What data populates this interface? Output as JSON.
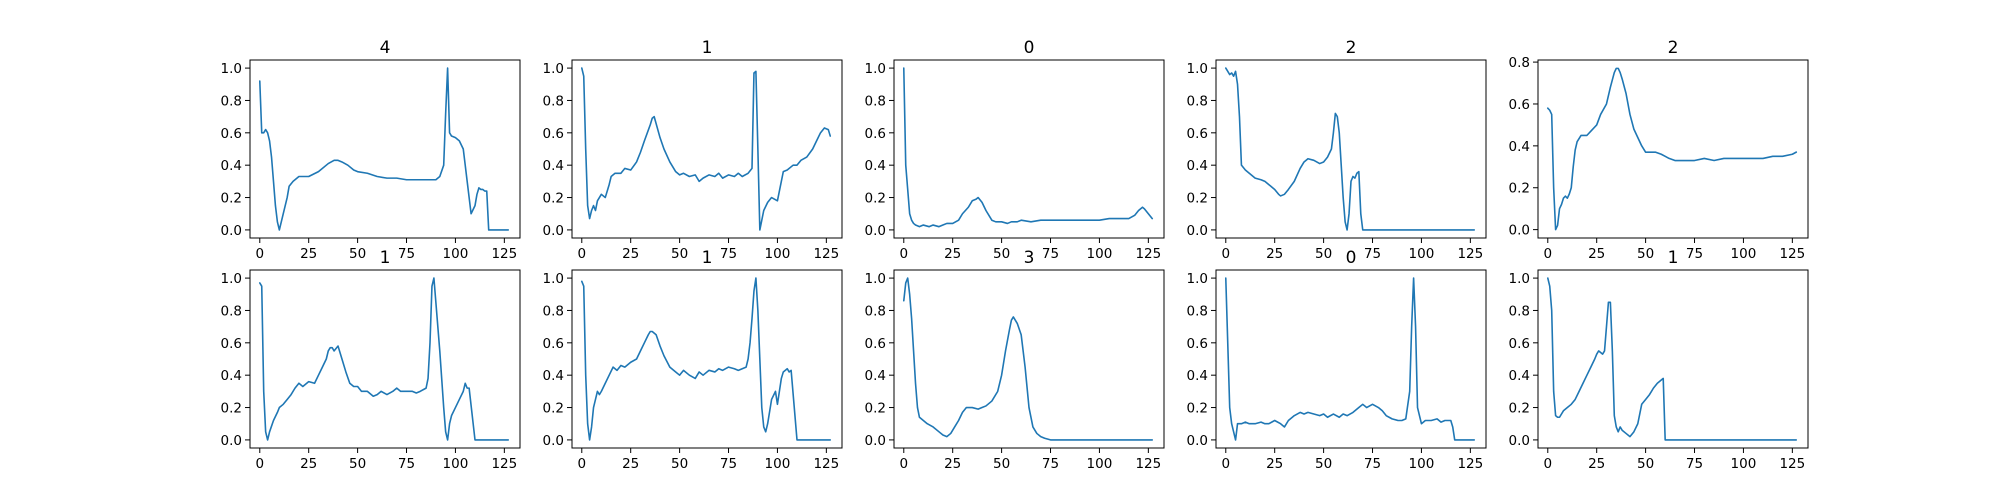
{
  "style": {
    "line_color": "#1f77b4",
    "background": "#ffffff"
  },
  "chart_data": [
    {
      "type": "line",
      "title": "4",
      "xlim": [
        -5,
        133
      ],
      "ylim": [
        -0.05,
        1.05
      ],
      "xticks": [
        0,
        25,
        50,
        75,
        100,
        125
      ],
      "yticks": [
        0.0,
        0.2,
        0.4,
        0.6,
        0.8,
        1.0
      ],
      "x": [
        0,
        1,
        2,
        3,
        4,
        5,
        6,
        7,
        8,
        9,
        10,
        12,
        14,
        15,
        17,
        20,
        25,
        30,
        35,
        38,
        40,
        42,
        45,
        48,
        50,
        55,
        60,
        65,
        70,
        75,
        80,
        85,
        90,
        92,
        94,
        95,
        96,
        97,
        98,
        100,
        102,
        104,
        105,
        106,
        107,
        108,
        110,
        111,
        112,
        113,
        114,
        115,
        116,
        117,
        120,
        125,
        127
      ],
      "y": [
        0.92,
        0.6,
        0.6,
        0.62,
        0.6,
        0.55,
        0.45,
        0.3,
        0.15,
        0.05,
        0.0,
        0.1,
        0.2,
        0.27,
        0.3,
        0.33,
        0.33,
        0.36,
        0.41,
        0.43,
        0.43,
        0.42,
        0.4,
        0.37,
        0.36,
        0.35,
        0.33,
        0.32,
        0.32,
        0.31,
        0.31,
        0.31,
        0.31,
        0.33,
        0.4,
        0.72,
        1.0,
        0.6,
        0.58,
        0.57,
        0.55,
        0.5,
        0.4,
        0.3,
        0.2,
        0.1,
        0.15,
        0.22,
        0.26,
        0.25,
        0.25,
        0.24,
        0.24,
        0.0,
        0.0,
        0.0,
        0.0
      ]
    },
    {
      "type": "line",
      "title": "1",
      "xlim": [
        -5,
        133
      ],
      "ylim": [
        -0.05,
        1.05
      ],
      "xticks": [
        0,
        25,
        50,
        75,
        100,
        125
      ],
      "yticks": [
        0.0,
        0.2,
        0.4,
        0.6,
        0.8,
        1.0
      ],
      "x": [
        0,
        1,
        2,
        3,
        4,
        5,
        6,
        7,
        8,
        9,
        10,
        12,
        14,
        15,
        17,
        20,
        22,
        25,
        28,
        30,
        32,
        35,
        36,
        37,
        40,
        42,
        45,
        48,
        50,
        52,
        55,
        58,
        60,
        62,
        65,
        68,
        70,
        72,
        75,
        78,
        80,
        82,
        85,
        87,
        88,
        89,
        90,
        91,
        93,
        95,
        97,
        100,
        103,
        105,
        108,
        110,
        112,
        115,
        118,
        120,
        122,
        124,
        126,
        127
      ],
      "y": [
        1.0,
        0.95,
        0.5,
        0.15,
        0.07,
        0.12,
        0.15,
        0.12,
        0.18,
        0.2,
        0.22,
        0.2,
        0.28,
        0.33,
        0.35,
        0.35,
        0.38,
        0.37,
        0.42,
        0.48,
        0.55,
        0.65,
        0.69,
        0.7,
        0.57,
        0.5,
        0.42,
        0.36,
        0.34,
        0.35,
        0.33,
        0.34,
        0.3,
        0.32,
        0.34,
        0.33,
        0.35,
        0.32,
        0.34,
        0.33,
        0.35,
        0.33,
        0.35,
        0.38,
        0.97,
        0.98,
        0.5,
        0.0,
        0.12,
        0.17,
        0.2,
        0.18,
        0.36,
        0.37,
        0.4,
        0.4,
        0.43,
        0.45,
        0.5,
        0.55,
        0.6,
        0.63,
        0.62,
        0.58
      ]
    },
    {
      "type": "line",
      "title": "0",
      "xlim": [
        -5,
        133
      ],
      "ylim": [
        -0.05,
        1.05
      ],
      "xticks": [
        0,
        25,
        50,
        75,
        100,
        125
      ],
      "yticks": [
        0.0,
        0.2,
        0.4,
        0.6,
        0.8,
        1.0
      ],
      "x": [
        0,
        1,
        2,
        3,
        4,
        5,
        6,
        8,
        10,
        13,
        15,
        18,
        20,
        22,
        25,
        28,
        30,
        33,
        35,
        37,
        38,
        40,
        42,
        44,
        45,
        47,
        50,
        53,
        55,
        58,
        60,
        65,
        70,
        75,
        80,
        85,
        90,
        95,
        100,
        105,
        110,
        115,
        118,
        120,
        122,
        123,
        125,
        127
      ],
      "y": [
        1.0,
        0.4,
        0.25,
        0.1,
        0.06,
        0.04,
        0.03,
        0.02,
        0.03,
        0.02,
        0.03,
        0.02,
        0.03,
        0.04,
        0.04,
        0.06,
        0.1,
        0.14,
        0.18,
        0.19,
        0.2,
        0.17,
        0.12,
        0.08,
        0.06,
        0.05,
        0.05,
        0.04,
        0.05,
        0.05,
        0.06,
        0.05,
        0.06,
        0.06,
        0.06,
        0.06,
        0.06,
        0.06,
        0.06,
        0.07,
        0.07,
        0.07,
        0.09,
        0.12,
        0.14,
        0.13,
        0.1,
        0.07
      ]
    },
    {
      "type": "line",
      "title": "2",
      "xlim": [
        -5,
        133
      ],
      "ylim": [
        -0.05,
        1.05
      ],
      "xticks": [
        0,
        25,
        50,
        75,
        100,
        125
      ],
      "yticks": [
        0.0,
        0.2,
        0.4,
        0.6,
        0.8,
        1.0
      ],
      "x": [
        0,
        1,
        2,
        3,
        4,
        5,
        6,
        7,
        8,
        10,
        12,
        15,
        18,
        20,
        22,
        25,
        27,
        28,
        30,
        32,
        35,
        38,
        40,
        42,
        45,
        48,
        50,
        52,
        54,
        55,
        56,
        57,
        58,
        59,
        60,
        61,
        62,
        63,
        64,
        65,
        66,
        67,
        68,
        69,
        70,
        72,
        80,
        90,
        100,
        110,
        120,
        127
      ],
      "y": [
        1.0,
        0.98,
        0.96,
        0.97,
        0.95,
        0.98,
        0.9,
        0.7,
        0.4,
        0.37,
        0.35,
        0.32,
        0.31,
        0.3,
        0.28,
        0.25,
        0.22,
        0.21,
        0.22,
        0.25,
        0.3,
        0.38,
        0.42,
        0.44,
        0.43,
        0.41,
        0.42,
        0.45,
        0.5,
        0.6,
        0.72,
        0.7,
        0.6,
        0.4,
        0.2,
        0.05,
        0.0,
        0.1,
        0.3,
        0.33,
        0.32,
        0.35,
        0.36,
        0.1,
        0.0,
        0.0,
        0.0,
        0.0,
        0.0,
        0.0,
        0.0,
        0.0
      ]
    },
    {
      "type": "line",
      "title": "2",
      "xlim": [
        -5,
        133
      ],
      "ylim": [
        -0.04,
        0.81
      ],
      "xticks": [
        0,
        25,
        50,
        75,
        100,
        125
      ],
      "yticks": [
        0.0,
        0.2,
        0.4,
        0.6,
        0.8
      ],
      "x": [
        0,
        1,
        2,
        3,
        4,
        5,
        6,
        7,
        8,
        9,
        10,
        11,
        12,
        13,
        14,
        15,
        17,
        20,
        22,
        25,
        27,
        30,
        32,
        34,
        35,
        36,
        37,
        38,
        40,
        42,
        44,
        46,
        48,
        50,
        52,
        55,
        58,
        60,
        62,
        65,
        70,
        75,
        80,
        85,
        90,
        95,
        100,
        105,
        110,
        115,
        120,
        125,
        127
      ],
      "y": [
        0.58,
        0.57,
        0.55,
        0.2,
        0.0,
        0.02,
        0.1,
        0.12,
        0.15,
        0.16,
        0.15,
        0.17,
        0.2,
        0.3,
        0.38,
        0.42,
        0.45,
        0.45,
        0.47,
        0.5,
        0.55,
        0.6,
        0.68,
        0.75,
        0.77,
        0.77,
        0.75,
        0.72,
        0.65,
        0.55,
        0.48,
        0.44,
        0.4,
        0.37,
        0.37,
        0.37,
        0.36,
        0.35,
        0.34,
        0.33,
        0.33,
        0.33,
        0.34,
        0.33,
        0.34,
        0.34,
        0.34,
        0.34,
        0.34,
        0.35,
        0.35,
        0.36,
        0.37
      ]
    },
    {
      "type": "line",
      "title": "1",
      "xlim": [
        -5,
        133
      ],
      "ylim": [
        -0.05,
        1.05
      ],
      "xticks": [
        0,
        25,
        50,
        75,
        100,
        125
      ],
      "yticks": [
        0.0,
        0.2,
        0.4,
        0.6,
        0.8,
        1.0
      ],
      "x": [
        0,
        1,
        2,
        3,
        4,
        5,
        7,
        9,
        10,
        12,
        14,
        16,
        18,
        20,
        22,
        25,
        28,
        30,
        32,
        34,
        35,
        36,
        37,
        38,
        40,
        42,
        44,
        46,
        48,
        50,
        52,
        55,
        58,
        60,
        62,
        65,
        68,
        70,
        72,
        75,
        78,
        80,
        82,
        85,
        86,
        87,
        88,
        89,
        90,
        92,
        94,
        95,
        96,
        97,
        98,
        100,
        102,
        104,
        105,
        106,
        107,
        110,
        115,
        120,
        125,
        127
      ],
      "y": [
        0.97,
        0.95,
        0.3,
        0.05,
        0.0,
        0.05,
        0.12,
        0.17,
        0.2,
        0.22,
        0.25,
        0.28,
        0.32,
        0.35,
        0.33,
        0.36,
        0.35,
        0.4,
        0.45,
        0.5,
        0.55,
        0.57,
        0.57,
        0.55,
        0.58,
        0.5,
        0.42,
        0.35,
        0.33,
        0.33,
        0.3,
        0.3,
        0.27,
        0.28,
        0.3,
        0.28,
        0.3,
        0.32,
        0.3,
        0.3,
        0.3,
        0.29,
        0.3,
        0.32,
        0.38,
        0.6,
        0.95,
        1.0,
        0.85,
        0.55,
        0.2,
        0.05,
        0.0,
        0.1,
        0.15,
        0.2,
        0.25,
        0.3,
        0.35,
        0.32,
        0.32,
        0.0,
        0.0,
        0.0,
        0.0,
        0.0
      ]
    },
    {
      "type": "line",
      "title": "1",
      "xlim": [
        -5,
        133
      ],
      "ylim": [
        -0.05,
        1.05
      ],
      "xticks": [
        0,
        25,
        50,
        75,
        100,
        125
      ],
      "yticks": [
        0.0,
        0.2,
        0.4,
        0.6,
        0.8,
        1.0
      ],
      "x": [
        0,
        1,
        2,
        3,
        4,
        5,
        6,
        7,
        8,
        9,
        10,
        12,
        14,
        16,
        18,
        20,
        22,
        25,
        28,
        30,
        32,
        34,
        35,
        36,
        38,
        40,
        42,
        45,
        48,
        50,
        52,
        55,
        58,
        60,
        62,
        65,
        68,
        70,
        72,
        75,
        78,
        80,
        82,
        84,
        85,
        86,
        87,
        88,
        89,
        90,
        91,
        92,
        93,
        94,
        95,
        97,
        99,
        100,
        101,
        102,
        103,
        104,
        105,
        106,
        107,
        110,
        115,
        120,
        125,
        127
      ],
      "y": [
        0.98,
        0.95,
        0.4,
        0.1,
        0.0,
        0.08,
        0.2,
        0.25,
        0.3,
        0.28,
        0.3,
        0.35,
        0.4,
        0.45,
        0.43,
        0.46,
        0.45,
        0.48,
        0.5,
        0.55,
        0.6,
        0.65,
        0.67,
        0.67,
        0.65,
        0.58,
        0.52,
        0.45,
        0.42,
        0.4,
        0.43,
        0.4,
        0.38,
        0.42,
        0.4,
        0.43,
        0.42,
        0.44,
        0.43,
        0.45,
        0.44,
        0.43,
        0.44,
        0.45,
        0.5,
        0.6,
        0.75,
        0.92,
        1.0,
        0.8,
        0.5,
        0.2,
        0.08,
        0.05,
        0.1,
        0.25,
        0.3,
        0.22,
        0.3,
        0.38,
        0.42,
        0.43,
        0.44,
        0.42,
        0.43,
        0.0,
        0.0,
        0.0,
        0.0,
        0.0
      ]
    },
    {
      "type": "line",
      "title": "3",
      "xlim": [
        -5,
        133
      ],
      "ylim": [
        -0.05,
        1.05
      ],
      "xticks": [
        0,
        25,
        50,
        75,
        100,
        125
      ],
      "yticks": [
        0.0,
        0.2,
        0.4,
        0.6,
        0.8,
        1.0
      ],
      "x": [
        0,
        1,
        2,
        3,
        4,
        5,
        6,
        7,
        8,
        10,
        12,
        15,
        18,
        20,
        22,
        24,
        26,
        28,
        30,
        32,
        35,
        38,
        40,
        42,
        45,
        48,
        50,
        52,
        54,
        55,
        56,
        57,
        58,
        60,
        62,
        64,
        66,
        68,
        70,
        72,
        75,
        80,
        90,
        100,
        110,
        120,
        127
      ],
      "y": [
        0.86,
        0.97,
        1.0,
        0.9,
        0.75,
        0.55,
        0.35,
        0.2,
        0.14,
        0.12,
        0.1,
        0.08,
        0.05,
        0.03,
        0.02,
        0.04,
        0.08,
        0.12,
        0.17,
        0.2,
        0.2,
        0.19,
        0.2,
        0.21,
        0.24,
        0.3,
        0.4,
        0.55,
        0.68,
        0.74,
        0.76,
        0.74,
        0.72,
        0.65,
        0.45,
        0.2,
        0.08,
        0.04,
        0.02,
        0.01,
        0.0,
        0.0,
        0.0,
        0.0,
        0.0,
        0.0,
        0.0
      ]
    },
    {
      "type": "line",
      "title": "0",
      "xlim": [
        -5,
        133
      ],
      "ylim": [
        -0.05,
        1.05
      ],
      "xticks": [
        0,
        25,
        50,
        75,
        100,
        125
      ],
      "yticks": [
        0.0,
        0.2,
        0.4,
        0.6,
        0.8,
        1.0
      ],
      "x": [
        0,
        1,
        2,
        3,
        4,
        5,
        6,
        8,
        10,
        12,
        15,
        18,
        20,
        22,
        25,
        28,
        30,
        32,
        35,
        38,
        40,
        42,
        45,
        48,
        50,
        52,
        55,
        58,
        60,
        62,
        65,
        68,
        70,
        72,
        75,
        78,
        80,
        82,
        85,
        88,
        90,
        92,
        94,
        95,
        96,
        97,
        98,
        100,
        102,
        105,
        108,
        110,
        112,
        115,
        116,
        117,
        118,
        120,
        125,
        127
      ],
      "y": [
        1.0,
        0.6,
        0.2,
        0.1,
        0.05,
        0.0,
        0.1,
        0.1,
        0.11,
        0.1,
        0.1,
        0.11,
        0.1,
        0.1,
        0.12,
        0.1,
        0.08,
        0.12,
        0.15,
        0.17,
        0.16,
        0.17,
        0.16,
        0.15,
        0.16,
        0.14,
        0.16,
        0.14,
        0.16,
        0.15,
        0.17,
        0.2,
        0.22,
        0.2,
        0.22,
        0.2,
        0.18,
        0.15,
        0.13,
        0.12,
        0.12,
        0.13,
        0.3,
        0.7,
        1.0,
        0.7,
        0.2,
        0.1,
        0.12,
        0.12,
        0.13,
        0.11,
        0.12,
        0.12,
        0.08,
        0.0,
        0.0,
        0.0,
        0.0,
        0.0
      ]
    },
    {
      "type": "line",
      "title": "1",
      "xlim": [
        -5,
        133
      ],
      "ylim": [
        -0.05,
        1.05
      ],
      "xticks": [
        0,
        25,
        50,
        75,
        100,
        125
      ],
      "yticks": [
        0.0,
        0.2,
        0.4,
        0.6,
        0.8,
        1.0
      ],
      "x": [
        0,
        1,
        2,
        3,
        4,
        5,
        6,
        8,
        10,
        12,
        14,
        16,
        18,
        20,
        22,
        24,
        25,
        26,
        28,
        29,
        30,
        31,
        32,
        33,
        34,
        35,
        36,
        37,
        38,
        40,
        42,
        44,
        46,
        48,
        50,
        52,
        54,
        56,
        58,
        59,
        60,
        62,
        70,
        80,
        90,
        100,
        110,
        120,
        127
      ],
      "y": [
        1.0,
        0.95,
        0.8,
        0.3,
        0.15,
        0.14,
        0.14,
        0.18,
        0.2,
        0.22,
        0.25,
        0.3,
        0.35,
        0.4,
        0.45,
        0.5,
        0.53,
        0.55,
        0.53,
        0.55,
        0.7,
        0.85,
        0.85,
        0.55,
        0.15,
        0.08,
        0.05,
        0.08,
        0.06,
        0.04,
        0.02,
        0.05,
        0.1,
        0.22,
        0.25,
        0.28,
        0.32,
        0.35,
        0.37,
        0.38,
        0.0,
        0.0,
        0.0,
        0.0,
        0.0,
        0.0,
        0.0,
        0.0,
        0.0
      ]
    }
  ]
}
